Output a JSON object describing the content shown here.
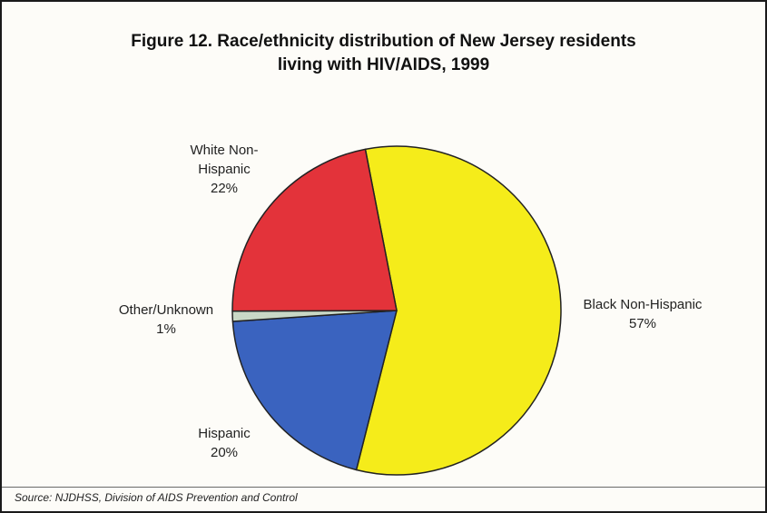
{
  "title_line1": "Figure 12. Race/ethnicity distribution of New Jersey residents",
  "title_line2": "living with HIV/AIDS, 1999",
  "source": "Source:  NJDHSS, Division of AIDS Prevention and Control",
  "chart_data": {
    "type": "pie",
    "title": "Figure 12. Race/ethnicity distribution of New Jersey residents living with HIV/AIDS, 1999",
    "slices": [
      {
        "name": "Black Non-Hispanic",
        "value": 57,
        "label_lines": [
          "Black Non-Hispanic",
          "57%"
        ],
        "color": "#f5ec1a"
      },
      {
        "name": "Hispanic",
        "value": 20,
        "label_lines": [
          "Hispanic",
          "20%"
        ],
        "color": "#3a63bf"
      },
      {
        "name": "Other/Unknown",
        "value": 1,
        "label_lines": [
          "Other/Unknown",
          "1%"
        ],
        "color": "#c9d8c6"
      },
      {
        "name": "White Non-Hispanic",
        "value": 22,
        "label_lines": [
          "White Non-",
          "Hispanic",
          "22%"
        ],
        "color": "#e3333a"
      }
    ]
  }
}
